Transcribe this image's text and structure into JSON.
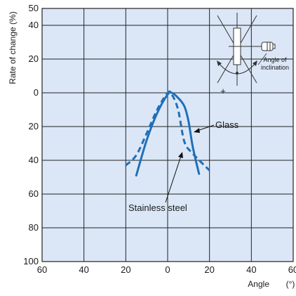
{
  "chart_data": {
    "type": "line",
    "title": "",
    "xlabel": "Angle",
    "x_unit": "(°)",
    "ylabel": "Rate of change (%)",
    "xlim": [
      -60,
      60
    ],
    "ylim": [
      -50,
      100
    ],
    "y_inverted": true,
    "grid": true,
    "x_ticks": [
      {
        "value": -60,
        "label": "60"
      },
      {
        "value": -40,
        "label": "40"
      },
      {
        "value": -20,
        "label": "20"
      },
      {
        "value": 0,
        "label": "0"
      },
      {
        "value": 20,
        "label": "20"
      },
      {
        "value": 40,
        "label": "40"
      },
      {
        "value": 60,
        "label": "60"
      }
    ],
    "y_ticks": [
      {
        "value": -50,
        "label": "50"
      },
      {
        "value": -40,
        "label": "40"
      },
      {
        "value": -20,
        "label": "20"
      },
      {
        "value": 0,
        "label": "0"
      },
      {
        "value": 20,
        "label": "20"
      },
      {
        "value": 40,
        "label": "40"
      },
      {
        "value": 60,
        "label": "60"
      },
      {
        "value": 80,
        "label": "80"
      },
      {
        "value": 100,
        "label": "100"
      }
    ],
    "series": [
      {
        "name": "Glass",
        "style": "solid",
        "color": "#1f6fb8",
        "points": [
          [
            -15,
            49
          ],
          [
            -10,
            28
          ],
          [
            -5,
            12
          ],
          [
            0,
            1
          ],
          [
            2,
            0
          ],
          [
            5,
            3
          ],
          [
            8,
            8
          ],
          [
            10,
            17
          ],
          [
            12,
            32
          ],
          [
            15,
            48
          ]
        ]
      },
      {
        "name": "Stainless steel",
        "style": "dashed",
        "color": "#1f6fb8",
        "points": [
          [
            -20,
            43
          ],
          [
            -15,
            37
          ],
          [
            -10,
            24
          ],
          [
            -5,
            10
          ],
          [
            0,
            0
          ],
          [
            2,
            1
          ],
          [
            5,
            10
          ],
          [
            8,
            29
          ],
          [
            12,
            36
          ],
          [
            20,
            46
          ]
        ]
      }
    ],
    "annotations": [
      {
        "text": "Glass",
        "target_series": 0
      },
      {
        "text": "Stainless steel",
        "target_series": 1
      }
    ]
  },
  "inset": {
    "plus_label": "+",
    "caption_line1": "Angle of",
    "caption_line2": "inclination"
  },
  "colors": {
    "plot_background": "#dbe7f7",
    "grid": "#222222",
    "series": "#1f6fb8",
    "inset_stroke": "#333333"
  }
}
